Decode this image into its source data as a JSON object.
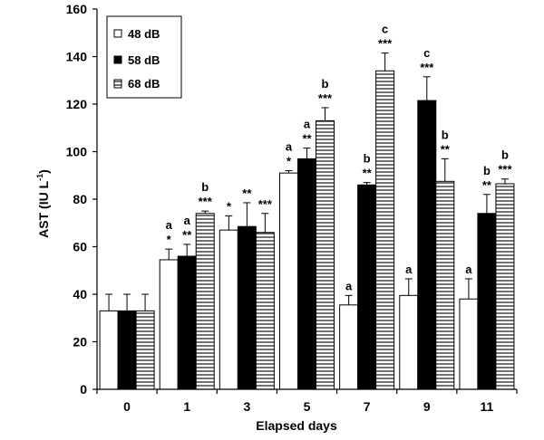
{
  "chart_data": {
    "type": "bar",
    "xlabel": "Elapsed days",
    "ylabel": "AST (IU L",
    "ylabel_sup": "-1",
    "ylabel_end": ")",
    "ylim": [
      0,
      160
    ],
    "ytick_step": 20,
    "categories": [
      "0",
      "1",
      "3",
      "5",
      "7",
      "9",
      "11"
    ],
    "series": [
      {
        "name": "48 dB",
        "fill": "white",
        "values": [
          33,
          54.5,
          67,
          91,
          35.5,
          39.5,
          38
        ],
        "errors": [
          7,
          4.5,
          6,
          1,
          4,
          7,
          8.5
        ],
        "annotations": [
          [],
          [
            "*",
            "a"
          ],
          [
            "*"
          ],
          [
            "*",
            "a"
          ],
          [
            "a"
          ],
          [
            "a"
          ],
          [
            "a"
          ]
        ]
      },
      {
        "name": "58 dB",
        "fill": "black",
        "values": [
          33,
          56,
          68.5,
          97,
          86,
          121.5,
          74
        ],
        "errors": [
          7,
          5,
          10,
          4.5,
          1,
          10,
          8
        ],
        "annotations": [
          [],
          [
            "**",
            "a"
          ],
          [
            "**"
          ],
          [
            "**",
            "a"
          ],
          [
            "**",
            "b"
          ],
          [
            "***",
            "c"
          ],
          [
            "**",
            "b"
          ]
        ]
      },
      {
        "name": "68 dB",
        "fill": "hatched",
        "values": [
          33,
          74,
          66,
          113,
          134,
          87.5,
          86.5
        ],
        "errors": [
          7,
          1,
          8,
          5.5,
          7.5,
          9.5,
          2
        ],
        "annotations": [
          [],
          [
            "***",
            "b"
          ],
          [
            "***"
          ],
          [
            "***",
            "b"
          ],
          [
            "***",
            "c"
          ],
          [
            "**",
            "b"
          ],
          [
            "***",
            "b"
          ]
        ]
      }
    ],
    "legend_position": "top-left"
  }
}
